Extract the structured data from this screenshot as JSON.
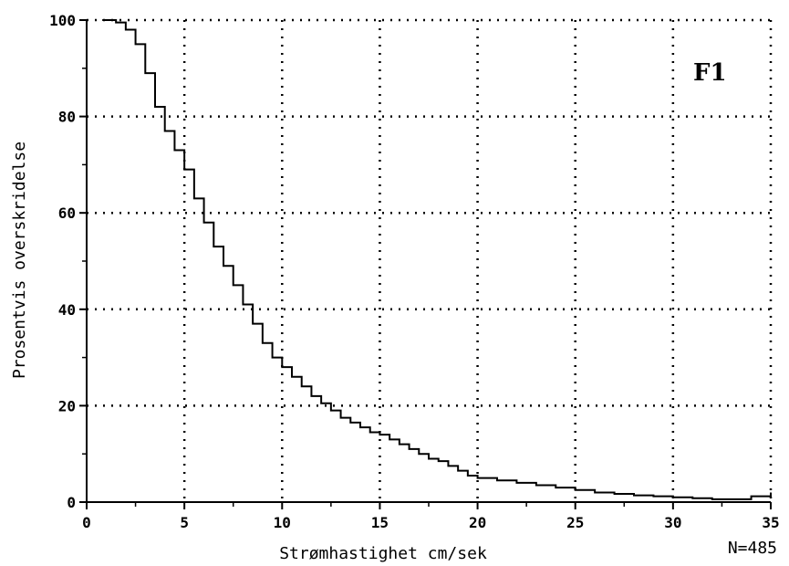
{
  "chart_data": {
    "type": "line",
    "title": "",
    "panel_label": "F1",
    "xlabel": "Strømhastighet cm/sek",
    "ylabel": "Prosentvis overskridelse",
    "sample_note": "N=485",
    "xlim": [
      0,
      35
    ],
    "ylim": [
      0,
      100
    ],
    "xticks": [
      0,
      5,
      10,
      15,
      20,
      25,
      30,
      35
    ],
    "yticks": [
      0,
      20,
      40,
      60,
      80,
      100
    ],
    "xtick_labels": [
      "0",
      "5",
      "10",
      "15",
      "20",
      "25",
      "30",
      "35"
    ],
    "ytick_labels": [
      "0",
      "20",
      "40",
      "60",
      "80",
      "100"
    ],
    "grid": true,
    "grid_style": "dotted",
    "line_style": "step",
    "series": [
      {
        "x": [
          0.8,
          1.0,
          1.5,
          2.0,
          2.5,
          3.0,
          3.5,
          4.0,
          4.5,
          5.0,
          5.5,
          6.0,
          6.5,
          7.0,
          7.5,
          8.0,
          8.5,
          9.0,
          9.5,
          10.0,
          10.5,
          11.0,
          11.5,
          12.0,
          12.5,
          13.0,
          13.5,
          14.0,
          14.5,
          15.0,
          15.5,
          16.0,
          16.5,
          17.0,
          17.5,
          18.0,
          18.5,
          19.0,
          19.5,
          20.0,
          21.0,
          22.0,
          23.0,
          24.0,
          25.0,
          26.0,
          27.0,
          28.0,
          29.0,
          30.0,
          31.0,
          32.0,
          33.0,
          34.0,
          35.0
        ],
        "y": [
          100,
          100,
          99.5,
          98,
          95,
          89,
          82,
          77,
          73,
          69,
          63,
          58,
          53,
          49,
          45,
          41,
          37,
          33,
          30,
          28,
          26,
          24,
          22,
          20.5,
          19,
          17.5,
          16.5,
          15.5,
          14.5,
          14,
          13,
          12,
          11,
          10,
          9,
          8.5,
          7.5,
          6.5,
          5.5,
          5,
          4.5,
          4,
          3.5,
          3,
          2.5,
          2,
          1.7,
          1.4,
          1.2,
          1,
          0.8,
          0.6,
          0.6,
          1.2,
          2
        ]
      }
    ]
  }
}
